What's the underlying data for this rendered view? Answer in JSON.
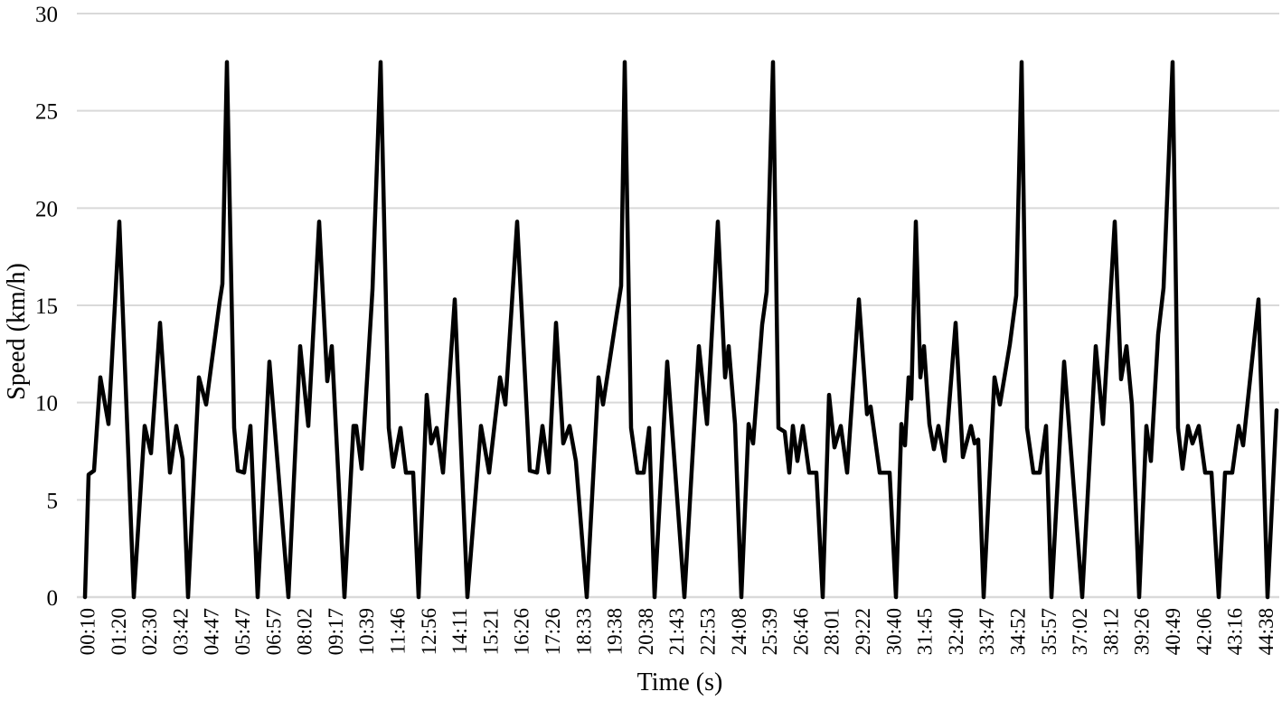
{
  "chart_data": {
    "type": "line",
    "title": "",
    "xlabel": "Time (s)",
    "ylabel": "Speed (km/h)",
    "ylim": [
      0,
      30
    ],
    "y_ticks": [
      0,
      5,
      10,
      15,
      20,
      25,
      30
    ],
    "x_tick_labels": [
      "00:10",
      "01:20",
      "02:30",
      "03:42",
      "04:47",
      "05:47",
      "06:57",
      "08:02",
      "09:17",
      "10:39",
      "11:46",
      "12:56",
      "14:11",
      "15:21",
      "16:26",
      "17:26",
      "18:33",
      "19:38",
      "20:38",
      "21:43",
      "22:53",
      "24:08",
      "25:39",
      "26:46",
      "28:01",
      "29:22",
      "30:40",
      "31:45",
      "32:40",
      "33:47",
      "34:52",
      "35:57",
      "37:02",
      "38:12",
      "39:26",
      "40:49",
      "42:06",
      "43:16",
      "44:38"
    ],
    "grid": "horizontal",
    "legend": "none",
    "line_color": "#000000",
    "gridline_color": "#d9d9d9",
    "background_color": "#ffffff",
    "series": [
      {
        "name": "Speed",
        "x_units": "screen_px",
        "y_units": "km/h",
        "points": [
          [
            94,
            0
          ],
          [
            98,
            6.3
          ],
          [
            104,
            6.5
          ],
          [
            111,
            11.3
          ],
          [
            120,
            8.9
          ],
          [
            132,
            19.3
          ],
          [
            148,
            0
          ],
          [
            160,
            8.8
          ],
          [
            167,
            7.4
          ],
          [
            177,
            14.1
          ],
          [
            188,
            6.4
          ],
          [
            195,
            8.8
          ],
          [
            202,
            7.1
          ],
          [
            208,
            0
          ],
          [
            220,
            11.3
          ],
          [
            228,
            9.9
          ],
          [
            243,
            15.2
          ],
          [
            246,
            16.1
          ],
          [
            251,
            27.5
          ],
          [
            259,
            8.7
          ],
          [
            263,
            6.5
          ],
          [
            270,
            6.4
          ],
          [
            277,
            8.8
          ],
          [
            285,
            0
          ],
          [
            298,
            12.1
          ],
          [
            319,
            0
          ],
          [
            332,
            12.9
          ],
          [
            341,
            8.8
          ],
          [
            353,
            19.3
          ],
          [
            362,
            11.1
          ],
          [
            367,
            12.9
          ],
          [
            381,
            0
          ],
          [
            391,
            8.8
          ],
          [
            394,
            8.8
          ],
          [
            400,
            6.6
          ],
          [
            412,
            15.8
          ],
          [
            421,
            27.5
          ],
          [
            430,
            8.7
          ],
          [
            435,
            6.7
          ],
          [
            443,
            8.7
          ],
          [
            449,
            6.4
          ],
          [
            457,
            6.4
          ],
          [
            463,
            0
          ],
          [
            472,
            10.4
          ],
          [
            477,
            7.9
          ],
          [
            483,
            8.7
          ],
          [
            490,
            6.4
          ],
          [
            503,
            15.3
          ],
          [
            517,
            0
          ],
          [
            532,
            8.8
          ],
          [
            541,
            6.4
          ],
          [
            553,
            11.3
          ],
          [
            559,
            9.9
          ],
          [
            572,
            19.3
          ],
          [
            586,
            6.5
          ],
          [
            594,
            6.4
          ],
          [
            600,
            8.8
          ],
          [
            607,
            6.4
          ],
          [
            615,
            14.1
          ],
          [
            623,
            7.9
          ],
          [
            630,
            8.8
          ],
          [
            637,
            7.0
          ],
          [
            649,
            0
          ],
          [
            662,
            11.3
          ],
          [
            667,
            9.9
          ],
          [
            682,
            14.5
          ],
          [
            687,
            16.0
          ],
          [
            691,
            27.5
          ],
          [
            698,
            8.7
          ],
          [
            705,
            6.4
          ],
          [
            712,
            6.4
          ],
          [
            718,
            8.7
          ],
          [
            724,
            0
          ],
          [
            738,
            12.1
          ],
          [
            757,
            0
          ],
          [
            773,
            12.9
          ],
          [
            782,
            8.9
          ],
          [
            794,
            19.3
          ],
          [
            802,
            11.3
          ],
          [
            806,
            12.9
          ],
          [
            813,
            8.9
          ],
          [
            820,
            0
          ],
          [
            828,
            8.9
          ],
          [
            833,
            7.9
          ],
          [
            843,
            14.0
          ],
          [
            848,
            15.7
          ],
          [
            855,
            27.5
          ],
          [
            861,
            8.7
          ],
          [
            868,
            8.5
          ],
          [
            873,
            6.4
          ],
          [
            877,
            8.8
          ],
          [
            882,
            7.0
          ],
          [
            888,
            8.8
          ],
          [
            895,
            6.4
          ],
          [
            903,
            6.4
          ],
          [
            910,
            0
          ],
          [
            917,
            10.4
          ],
          [
            923,
            7.7
          ],
          [
            930,
            8.8
          ],
          [
            937,
            6.4
          ],
          [
            950,
            15.3
          ],
          [
            959,
            9.4
          ],
          [
            963,
            9.8
          ],
          [
            973,
            6.4
          ],
          [
            984,
            6.4
          ],
          [
            991,
            0
          ],
          [
            997,
            8.9
          ],
          [
            1001,
            7.8
          ],
          [
            1005,
            11.3
          ],
          [
            1008,
            10.2
          ],
          [
            1013,
            19.3
          ],
          [
            1018,
            11.3
          ],
          [
            1022,
            12.9
          ],
          [
            1028,
            8.9
          ],
          [
            1033,
            7.6
          ],
          [
            1038,
            8.8
          ],
          [
            1045,
            7.0
          ],
          [
            1057,
            14.1
          ],
          [
            1065,
            7.2
          ],
          [
            1074,
            8.8
          ],
          [
            1078,
            7.9
          ],
          [
            1082,
            8.1
          ],
          [
            1088,
            0
          ],
          [
            1100,
            11.3
          ],
          [
            1106,
            9.9
          ],
          [
            1117,
            13.0
          ],
          [
            1124,
            15.5
          ],
          [
            1130,
            27.5
          ],
          [
            1136,
            8.7
          ],
          [
            1143,
            6.4
          ],
          [
            1150,
            6.4
          ],
          [
            1157,
            8.8
          ],
          [
            1163,
            0
          ],
          [
            1177,
            12.1
          ],
          [
            1197,
            0
          ],
          [
            1212,
            12.9
          ],
          [
            1220,
            8.9
          ],
          [
            1233,
            19.3
          ],
          [
            1240,
            11.2
          ],
          [
            1246,
            12.9
          ],
          [
            1252,
            9.9
          ],
          [
            1260,
            0
          ],
          [
            1268,
            8.8
          ],
          [
            1273,
            7.0
          ],
          [
            1281,
            13.5
          ],
          [
            1287,
            15.9
          ],
          [
            1297,
            27.5
          ],
          [
            1303,
            8.7
          ],
          [
            1308,
            6.6
          ],
          [
            1314,
            8.8
          ],
          [
            1319,
            7.9
          ],
          [
            1326,
            8.8
          ],
          [
            1333,
            6.4
          ],
          [
            1340,
            6.4
          ],
          [
            1348,
            0
          ],
          [
            1355,
            6.4
          ],
          [
            1363,
            6.4
          ],
          [
            1370,
            8.8
          ],
          [
            1375,
            7.8
          ],
          [
            1392,
            15.3
          ],
          [
            1402,
            0
          ],
          [
            1412,
            9.6
          ]
        ]
      }
    ]
  }
}
